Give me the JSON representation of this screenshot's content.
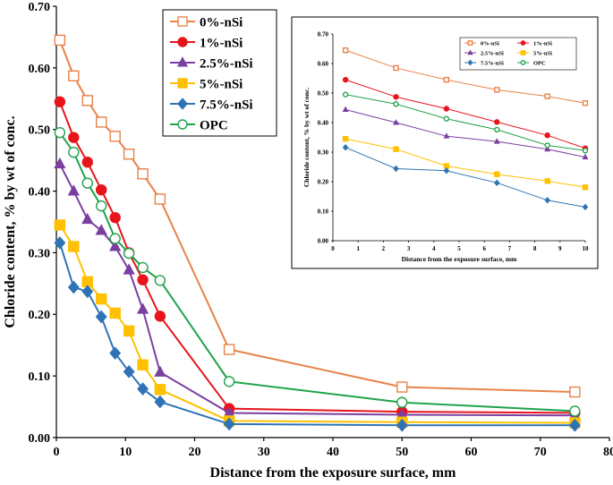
{
  "chart_data": [
    {
      "type": "line",
      "xlabel": "Distance from the exposure surface, mm",
      "ylabel": "Chloride content, % by wt of conc.",
      "xlim": [
        0,
        80
      ],
      "ylim": [
        0,
        0.7
      ],
      "x_ticks": [
        "0",
        "10",
        "20",
        "30",
        "40",
        "50",
        "60",
        "70",
        "80"
      ],
      "y_ticks": [
        "0.00",
        "0.10",
        "0.20",
        "0.30",
        "0.40",
        "0.50",
        "0.60",
        "0.70"
      ],
      "grid": false,
      "legend_position": "top-center",
      "series": [
        {
          "name": "0%-nSi",
          "color": "#E8824A",
          "marker": "square-open",
          "x": [
            0.5,
            2.5,
            4.5,
            6.5,
            8.5,
            10.5,
            12.5,
            15,
            25,
            50,
            75
          ],
          "y": [
            0.645,
            0.587,
            0.547,
            0.512,
            0.489,
            0.46,
            0.428,
            0.387,
            0.143,
            0.082,
            0.074
          ]
        },
        {
          "name": "1%-nSi",
          "color": "#E8141C",
          "marker": "circle-filled",
          "x": [
            0.5,
            2.5,
            4.5,
            6.5,
            8.5,
            10.5,
            12.5,
            15,
            25,
            50,
            75
          ],
          "y": [
            0.545,
            0.487,
            0.447,
            0.402,
            0.357,
            0.3,
            0.256,
            0.197,
            0.047,
            0.042,
            0.04
          ]
        },
        {
          "name": "2.5%-nSi",
          "color": "#7B3FA0",
          "marker": "triangle-filled",
          "x": [
            0.5,
            2.5,
            4.5,
            6.5,
            8.5,
            10.5,
            12.5,
            15,
            25,
            50,
            75
          ],
          "y": [
            0.444,
            0.4,
            0.354,
            0.336,
            0.31,
            0.272,
            0.208,
            0.106,
            0.04,
            0.037,
            0.036
          ]
        },
        {
          "name": "5%-nSi",
          "color": "#FFC000",
          "marker": "square-filled",
          "x": [
            0.5,
            2.5,
            4.5,
            6.5,
            8.5,
            10.5,
            12.5,
            15,
            25,
            50,
            75
          ],
          "y": [
            0.345,
            0.31,
            0.253,
            0.225,
            0.202,
            0.173,
            0.118,
            0.078,
            0.027,
            0.025,
            0.024
          ]
        },
        {
          "name": "7.5%-nSi",
          "color": "#2E74B5",
          "marker": "diamond-filled",
          "x": [
            0.5,
            2.5,
            4.5,
            6.5,
            8.5,
            10.5,
            12.5,
            15,
            25,
            50,
            75
          ],
          "y": [
            0.316,
            0.244,
            0.237,
            0.196,
            0.137,
            0.107,
            0.079,
            0.058,
            0.022,
            0.02,
            0.02
          ]
        },
        {
          "name": "OPC",
          "color": "#1FA34A",
          "marker": "circle-open",
          "x": [
            0.5,
            2.5,
            4.5,
            6.5,
            8.5,
            10.5,
            12.5,
            15,
            25,
            50,
            75
          ],
          "y": [
            0.495,
            0.463,
            0.413,
            0.376,
            0.323,
            0.299,
            0.276,
            0.255,
            0.091,
            0.057,
            0.043
          ]
        }
      ]
    },
    {
      "type": "line",
      "xlabel": "Distance from the exposure surface, mm",
      "ylabel": "Chloride content, % by wt of conc.",
      "xlim": [
        0,
        10
      ],
      "ylim": [
        0,
        0.7
      ],
      "x_ticks": [
        "0",
        "1",
        "2",
        "3",
        "4",
        "5",
        "6",
        "7",
        "8",
        "9",
        "10"
      ],
      "y_ticks": [
        "0.00",
        "0.10",
        "0.20",
        "0.30",
        "0.40",
        "0.50",
        "0.60",
        "0.70"
      ],
      "grid": false,
      "legend_position": "top-center",
      "series": [
        {
          "name": "0%-nSi",
          "color": "#E8824A",
          "marker": "square-open",
          "x": [
            0.5,
            2.5,
            4.5,
            6.5,
            8.5,
            10
          ],
          "y": [
            0.645,
            0.585,
            0.545,
            0.511,
            0.489,
            0.466
          ]
        },
        {
          "name": "1%-nSi",
          "color": "#E8141C",
          "marker": "circle-filled",
          "x": [
            0.5,
            2.5,
            4.5,
            6.5,
            8.5,
            10
          ],
          "y": [
            0.545,
            0.487,
            0.447,
            0.402,
            0.357,
            0.313
          ]
        },
        {
          "name": "2.5%-nSi",
          "color": "#7B3FA0",
          "marker": "triangle-filled",
          "x": [
            0.5,
            2.5,
            4.5,
            6.5,
            8.5,
            10
          ],
          "y": [
            0.444,
            0.4,
            0.354,
            0.336,
            0.31,
            0.283
          ]
        },
        {
          "name": "5%-nSi",
          "color": "#FFC000",
          "marker": "square-filled",
          "x": [
            0.5,
            2.5,
            4.5,
            6.5,
            8.5,
            10
          ],
          "y": [
            0.345,
            0.31,
            0.253,
            0.225,
            0.202,
            0.181
          ]
        },
        {
          "name": "7.5%-nSi",
          "color": "#2E74B5",
          "marker": "diamond-filled",
          "x": [
            0.5,
            2.5,
            4.5,
            6.5,
            8.5,
            10
          ],
          "y": [
            0.316,
            0.244,
            0.237,
            0.196,
            0.137,
            0.114
          ]
        },
        {
          "name": "OPC",
          "color": "#1FA34A",
          "marker": "circle-open",
          "x": [
            0.5,
            2.5,
            4.5,
            6.5,
            8.5,
            10
          ],
          "y": [
            0.495,
            0.463,
            0.413,
            0.376,
            0.323,
            0.305
          ]
        }
      ]
    }
  ]
}
